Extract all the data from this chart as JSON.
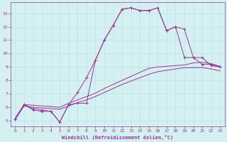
{
  "xlabel": "Windchill (Refroidissement éolien,°C)",
  "bg_color": "#d4f0f0",
  "line_color": "#993399",
  "grid_color": "#b8e0e0",
  "xlim": [
    -0.5,
    23.5
  ],
  "ylim": [
    4.6,
    13.8
  ],
  "yticks": [
    5,
    6,
    7,
    8,
    9,
    10,
    11,
    12,
    13
  ],
  "xticks": [
    0,
    1,
    2,
    3,
    4,
    5,
    6,
    7,
    8,
    9,
    10,
    11,
    12,
    13,
    14,
    15,
    16,
    17,
    18,
    19,
    20,
    21,
    22,
    23
  ],
  "series": [
    {
      "x": [
        0,
        1,
        2,
        3,
        4,
        5,
        6,
        7,
        8,
        9,
        10,
        11,
        12,
        13,
        14,
        15,
        16,
        17,
        18,
        19,
        20,
        21,
        22,
        23
      ],
      "y": [
        5.1,
        6.2,
        5.8,
        5.7,
        5.7,
        4.9,
        6.2,
        7.1,
        8.2,
        9.5,
        11.0,
        12.1,
        13.3,
        13.4,
        13.2,
        13.2,
        13.4,
        11.7,
        12.0,
        11.8,
        9.7,
        9.7,
        9.1,
        9.0
      ],
      "has_markers": true
    },
    {
      "x": [
        0,
        1,
        2,
        3,
        4,
        5,
        6,
        7,
        8,
        9,
        10,
        11,
        12,
        13,
        14,
        15,
        16,
        17,
        18,
        19,
        20,
        21,
        22,
        23
      ],
      "y": [
        5.1,
        6.2,
        5.9,
        5.8,
        5.7,
        4.9,
        6.2,
        6.3,
        6.3,
        9.5,
        11.0,
        12.1,
        13.3,
        13.4,
        13.2,
        13.2,
        13.4,
        11.7,
        12.0,
        9.7,
        9.7,
        9.2,
        9.2,
        9.0
      ],
      "has_markers": true
    },
    {
      "x": [
        0,
        1,
        2,
        3,
        4,
        5,
        6,
        7,
        8,
        9,
        10,
        11,
        12,
        13,
        14,
        15,
        16,
        17,
        18,
        19,
        20,
        21,
        22,
        23
      ],
      "y": [
        5.2,
        6.2,
        6.15,
        6.1,
        6.05,
        6.0,
        6.3,
        6.55,
        6.8,
        7.05,
        7.4,
        7.7,
        8.0,
        8.3,
        8.6,
        8.9,
        9.0,
        9.05,
        9.1,
        9.15,
        9.3,
        9.35,
        9.25,
        9.05
      ],
      "has_markers": false
    },
    {
      "x": [
        0,
        1,
        2,
        3,
        4,
        5,
        6,
        7,
        8,
        9,
        10,
        11,
        12,
        13,
        14,
        15,
        16,
        17,
        18,
        19,
        20,
        21,
        22,
        23
      ],
      "y": [
        5.1,
        6.1,
        6.0,
        5.95,
        5.9,
        5.85,
        6.1,
        6.35,
        6.55,
        6.8,
        7.1,
        7.4,
        7.7,
        7.95,
        8.2,
        8.45,
        8.65,
        8.75,
        8.85,
        8.95,
        8.95,
        8.95,
        8.85,
        8.7
      ],
      "has_markers": false
    }
  ]
}
